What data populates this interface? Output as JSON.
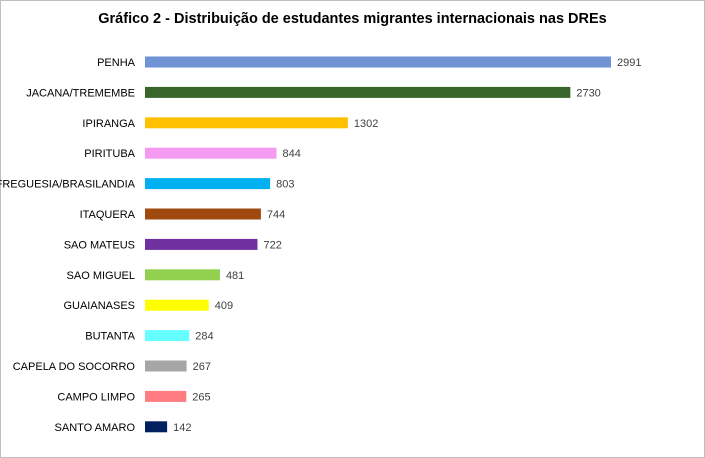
{
  "chart_data": {
    "type": "bar",
    "orientation": "horizontal",
    "title": "Gráfico 2 - Distribuição de estudantes migrantes internacionais nas DREs",
    "xlabel": "",
    "ylabel": "",
    "grid": false,
    "legend": "none",
    "categories": [
      "PENHA",
      "JACANA/TREMEMBE",
      "IPIRANGA",
      "PIRITUBA",
      "FREGUESIA/BRASILANDIA",
      "ITAQUERA",
      "SAO MATEUS",
      "SAO MIGUEL",
      "GUAIANASES",
      "BUTANTA",
      "CAPELA DO SOCORRO",
      "CAMPO LIMPO",
      "SANTO AMARO"
    ],
    "values": [
      2991,
      2730,
      1302,
      844,
      803,
      744,
      722,
      481,
      409,
      284,
      267,
      265,
      142
    ],
    "data_labels": [
      "2991",
      "2730",
      "1302",
      "844",
      "803",
      "744",
      "722",
      "481",
      "409",
      "284",
      "267",
      "265",
      "142"
    ],
    "colors": [
      "#6F93D5",
      "#38662A",
      "#FFC000",
      "#F49AF0",
      "#00B0F0",
      "#A04A10",
      "#7030A0",
      "#92D050",
      "#FFFF00",
      "#66FFFF",
      "#A6A6A6",
      "#FF7C80",
      "#002060"
    ]
  }
}
